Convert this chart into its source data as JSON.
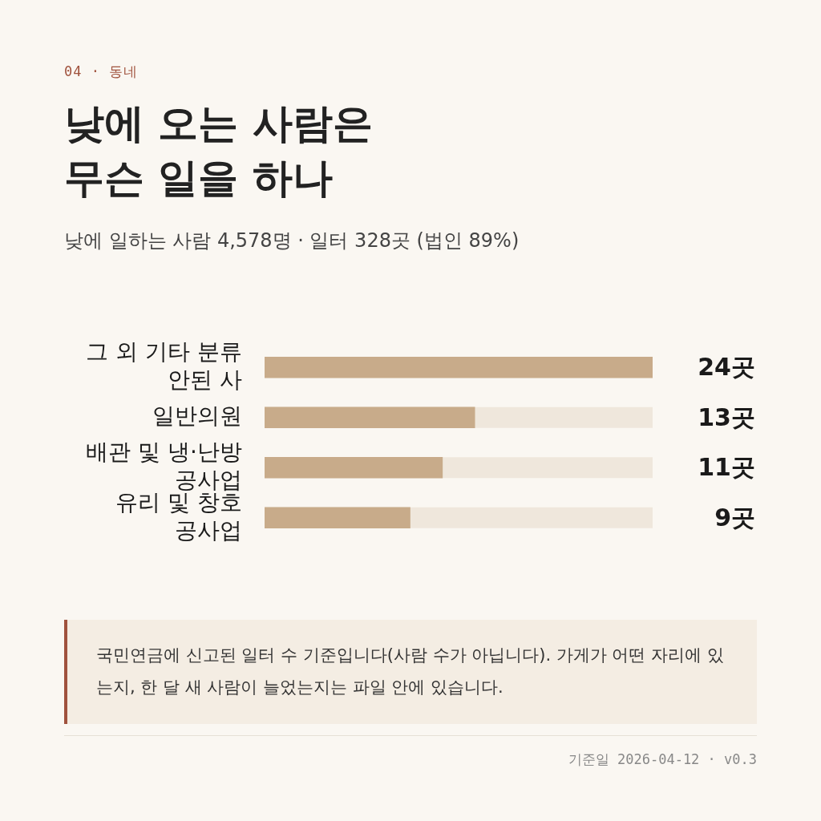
{
  "chart_data": {
    "type": "bar",
    "orientation": "horizontal",
    "title": "낮에 오는 사람은 무슨 일을 하나",
    "subtitle": "낮에 일하는 사람 4,578명 · 일터 328곳 (법인 89%)",
    "categories": [
      "그 외 기타 분류 안된 사",
      "일반의원",
      "배관 및 냉·난방 공사업",
      "유리 및 창호 공사업"
    ],
    "values": [
      24,
      13,
      11,
      9
    ],
    "color": "#c8ab8a",
    "value_labels": [
      "24곳",
      "13곳",
      "11곳",
      "9곳"
    ],
    "annotations": [
      "04 · 동네",
      "국민연금에 신고된 일터 수 기준입니다(사람 수가 아닙니다). 가게가 어떤 자리에 있는지, 한 달 새 사람이 늘었는지는 파일 안에 있습니다.",
      "기준일 2026-04-12 · v0.3"
    ],
    "legend": false
  }
}
